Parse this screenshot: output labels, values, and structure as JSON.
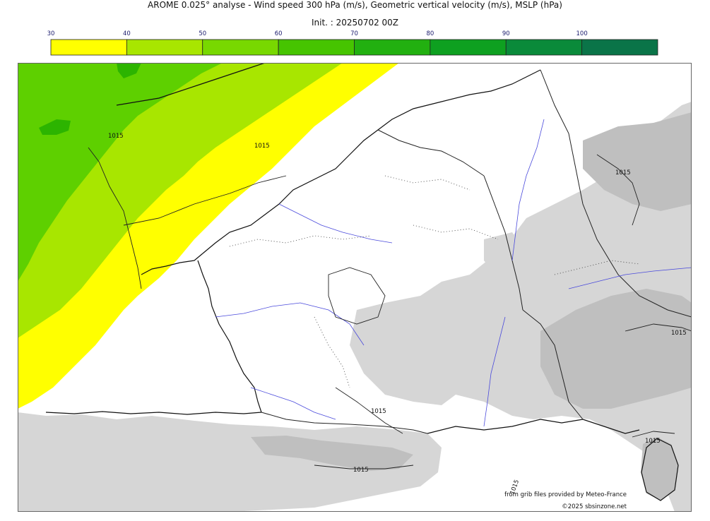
{
  "header": {
    "title": "AROME 0.025° analyse - Wind speed 300 hPa (m/s), Geometric vertical velocity (m/s), MSLP (hPa)",
    "init": "Init. : 20250702 00Z"
  },
  "legend": {
    "ticks": [
      "30",
      "40",
      "50",
      "60",
      "70",
      "80",
      "90",
      "100"
    ],
    "colors": [
      "#ffff00",
      "#a8e600",
      "#78d800",
      "#46c400",
      "#22b010",
      "#0ea020",
      "#0a8a3a",
      "#0a7448"
    ]
  },
  "colors": {
    "wind_30_40": "#ffff00",
    "wind_40_50": "#a8e600",
    "wind_50_60": "#5ed000",
    "wind_60_70": "#2cb400",
    "terrain_light": "#dcdcdc",
    "terrain_mid": "#c8c8c8",
    "coast": "#111111",
    "rivers": "#4a4adc"
  },
  "map": {
    "contour_labels": [
      "1015",
      "1015",
      "1015",
      "1015",
      "1015",
      "1015",
      "1015",
      "1015"
    ]
  },
  "credits": {
    "source": "from grib files provided by Meteo-France",
    "copyright": "©2025 sbsinzone.net"
  }
}
